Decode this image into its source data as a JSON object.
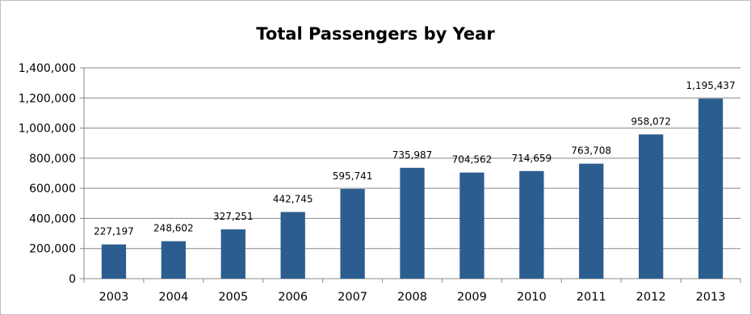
{
  "chart_data": {
    "type": "bar",
    "title": "Total Passengers by Year",
    "xlabel": "",
    "ylabel": "",
    "categories": [
      "2003",
      "2004",
      "2005",
      "2006",
      "2007",
      "2008",
      "2009",
      "2010",
      "2011",
      "2012",
      "2013"
    ],
    "values": [
      227197,
      248602,
      327251,
      442745,
      595741,
      735987,
      704562,
      714659,
      763708,
      958072,
      1195437
    ],
    "data_labels": [
      "227,197",
      "248,602",
      "327,251",
      "442,745",
      "595,741",
      "735,987",
      "704,562",
      "714,659",
      "763,708",
      "958,072",
      "1,195,437"
    ],
    "ylim": [
      0,
      1400000
    ],
    "y_ticks": [
      0,
      200000,
      400000,
      600000,
      800000,
      1000000,
      1200000,
      1400000
    ],
    "y_tick_labels": [
      "0",
      "200,000",
      "400,000",
      "600,000",
      "800,000",
      "1,000,000",
      "1,200,000",
      "1,400,000"
    ],
    "grid": true,
    "legend": "none",
    "bar_color": "#2C5D8F",
    "grid_color": "#878787"
  }
}
